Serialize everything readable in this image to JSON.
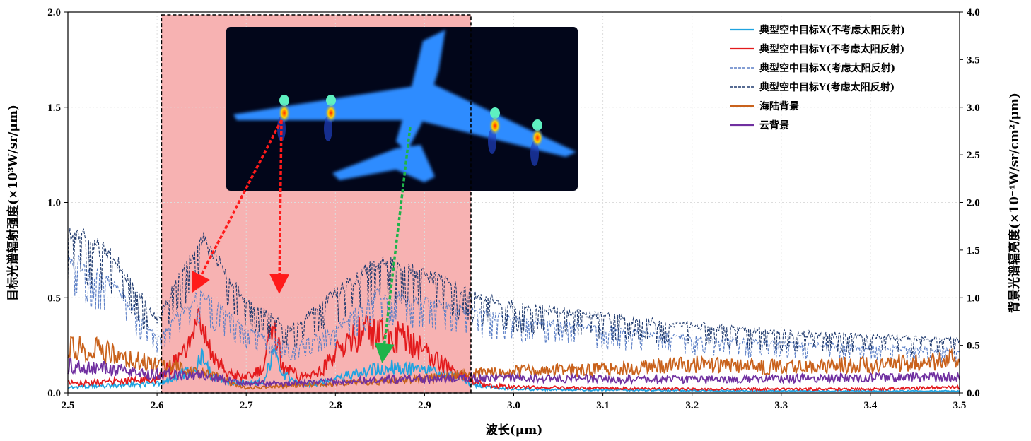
{
  "chart_data": {
    "type": "line",
    "xlabel": "波长(μm)",
    "ylabel_left": "目标光谱辐射强度(×10³W/sr/μm)",
    "ylabel_right": "背景光谱辐亮度(×10⁻⁴W/sr/cm²/μm)",
    "xlim": [
      2.5,
      3.5
    ],
    "ylim_left": [
      0,
      2.0
    ],
    "ylim_right": [
      0,
      4.0
    ],
    "x_ticks": [
      "2.5",
      "2.6",
      "2.7",
      "2.8",
      "2.9",
      "3.0",
      "3.1",
      "3.2",
      "3.3",
      "3.4",
      "3.5"
    ],
    "y_left_ticks": [
      "0.0",
      "0.5",
      "1.0",
      "1.5",
      "2.0"
    ],
    "y_right_ticks": [
      "0.0",
      "0.5",
      "1.0",
      "1.5",
      "2.0",
      "2.5",
      "3.0",
      "3.5",
      "4.0"
    ],
    "grid": true,
    "legend_position": "top-right",
    "highlight_region": [
      2.605,
      2.952
    ],
    "inset": "airplane-infrared-image",
    "series": [
      {
        "name": "典型空中目标X(不考虑太阳反射)",
        "color": "#1fa3e0",
        "style": "solid",
        "axis": "left",
        "x": [
          2.5,
          2.55,
          2.6,
          2.64,
          2.65,
          2.66,
          2.68,
          2.7,
          2.72,
          2.73,
          2.74,
          2.76,
          2.78,
          2.8,
          2.82,
          2.84,
          2.86,
          2.88,
          2.9,
          2.92,
          2.94,
          2.95,
          2.97,
          3.0,
          3.1,
          3.2,
          3.3,
          3.4,
          3.5
        ],
        "y": [
          0.03,
          0.04,
          0.05,
          0.12,
          0.18,
          0.1,
          0.06,
          0.05,
          0.06,
          0.2,
          0.1,
          0.05,
          0.05,
          0.07,
          0.1,
          0.12,
          0.14,
          0.13,
          0.12,
          0.1,
          0.08,
          0.05,
          0.03,
          0.02,
          0.015,
          0.012,
          0.01,
          0.01,
          0.01
        ]
      },
      {
        "name": "典型空中目标Y(不考虑太阳反射)",
        "color": "#e31a1c",
        "style": "solid",
        "axis": "left",
        "x": [
          2.5,
          2.55,
          2.6,
          2.63,
          2.64,
          2.65,
          2.66,
          2.68,
          2.7,
          2.72,
          2.73,
          2.74,
          2.76,
          2.78,
          2.8,
          2.82,
          2.84,
          2.86,
          2.88,
          2.9,
          2.92,
          2.94,
          2.95,
          2.97,
          3.0,
          3.1,
          3.2,
          3.3,
          3.4,
          3.5
        ],
        "y": [
          0.05,
          0.06,
          0.08,
          0.2,
          0.3,
          0.38,
          0.2,
          0.1,
          0.08,
          0.12,
          0.38,
          0.15,
          0.08,
          0.1,
          0.2,
          0.3,
          0.32,
          0.3,
          0.28,
          0.22,
          0.15,
          0.1,
          0.07,
          0.04,
          0.03,
          0.025,
          0.02,
          0.02,
          0.02,
          0.03
        ]
      },
      {
        "name": "典型空中目标X(考虑太阳反射)",
        "color": "#5b7fc6",
        "style": "dashed",
        "axis": "left",
        "x": [
          2.5,
          2.55,
          2.6,
          2.65,
          2.7,
          2.75,
          2.8,
          2.85,
          2.9,
          2.95,
          3.0,
          3.1,
          3.2,
          3.3,
          3.4,
          3.5
        ],
        "y": [
          0.75,
          0.6,
          0.3,
          0.55,
          0.35,
          0.25,
          0.35,
          0.55,
          0.5,
          0.45,
          0.4,
          0.35,
          0.3,
          0.27,
          0.25,
          0.23
        ]
      },
      {
        "name": "典型空中目标Y(考虑太阳反射)",
        "color": "#1f3a6e",
        "style": "dashed",
        "axis": "left",
        "x": [
          2.5,
          2.55,
          2.6,
          2.65,
          2.7,
          2.75,
          2.8,
          2.85,
          2.9,
          2.95,
          3.0,
          3.1,
          3.2,
          3.3,
          3.4,
          3.5
        ],
        "y": [
          0.9,
          0.75,
          0.4,
          0.85,
          0.5,
          0.35,
          0.55,
          0.72,
          0.65,
          0.55,
          0.48,
          0.42,
          0.37,
          0.33,
          0.31,
          0.29
        ]
      },
      {
        "name": "海陆背景",
        "color": "#c9621c",
        "style": "solid",
        "axis": "right",
        "x": [
          2.5,
          2.55,
          2.6,
          2.65,
          2.7,
          2.75,
          2.8,
          2.85,
          2.9,
          2.95,
          3.0,
          3.1,
          3.2,
          3.3,
          3.4,
          3.5
        ],
        "y": [
          0.5,
          0.42,
          0.3,
          0.22,
          0.05,
          0.08,
          0.1,
          0.12,
          0.15,
          0.2,
          0.22,
          0.25,
          0.3,
          0.27,
          0.3,
          0.35
        ]
      },
      {
        "name": "云背景",
        "color": "#7030a0",
        "style": "solid",
        "axis": "right",
        "x": [
          2.5,
          2.55,
          2.6,
          2.65,
          2.7,
          2.75,
          2.8,
          2.85,
          2.9,
          2.95,
          3.0,
          3.1,
          3.2,
          3.3,
          3.4,
          3.5
        ],
        "y": [
          0.28,
          0.25,
          0.2,
          0.18,
          0.1,
          0.1,
          0.12,
          0.14,
          0.15,
          0.16,
          0.16,
          0.15,
          0.14,
          0.15,
          0.16,
          0.17
        ]
      }
    ]
  }
}
